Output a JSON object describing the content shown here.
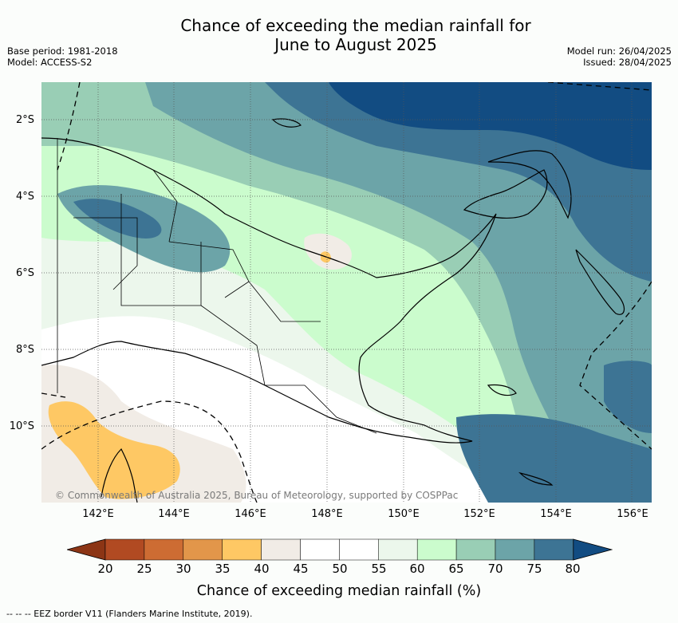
{
  "header": {
    "title_line1": "Chance of exceeding the median rainfall for",
    "title_line2": "June to August 2025",
    "base_period": "Base period: 1981-2018",
    "model": "Model: ACCESS-S2",
    "model_run": "Model run: 26/04/2025",
    "issued": "Issued: 28/04/2025"
  },
  "map": {
    "lat_labels": [
      "2°S",
      "4°S",
      "6°S",
      "8°S",
      "10°S"
    ],
    "lon_labels": [
      "142°E",
      "144°E",
      "146°E",
      "148°E",
      "150°E",
      "152°E",
      "154°E",
      "156°E"
    ],
    "copyright": "© Commonwealth of Australia 2025, Bureau of Meteorology, supported by COSPPac"
  },
  "colorbar": {
    "ticks": [
      "20",
      "25",
      "30",
      "35",
      "40",
      "45",
      "50",
      "55",
      "60",
      "65",
      "70",
      "75",
      "80"
    ],
    "colors": [
      "#8c3515",
      "#b14a22",
      "#cd6c33",
      "#e2964a",
      "#fec864",
      "#f1ece6",
      "#ffffff",
      "#ffffff",
      "#ecf7ec",
      "#cbfccd",
      "#99ceb5",
      "#6ca4a8",
      "#3d7494",
      "#124c82"
    ],
    "title": "Chance of exceeding median rainfall (%)"
  },
  "footnote": "--  --  -- EEZ border V11 (Flanders Marine Institute, 2019)."
}
